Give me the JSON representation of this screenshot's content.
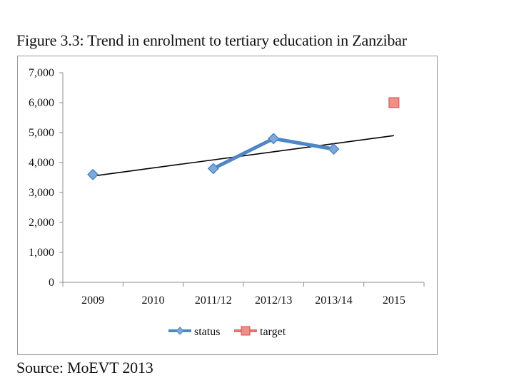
{
  "figure": {
    "title": "Figure 3.3: Trend in enrolment to tertiary education in Zanzibar",
    "source": "Source: MoEVT 2013"
  },
  "chart_data": {
    "type": "line",
    "title": "",
    "xlabel": "",
    "ylabel": "",
    "categories": [
      "2009",
      "2010",
      "2011/12",
      "2012/13",
      "2013/14",
      "2015"
    ],
    "ylim": [
      0,
      7000
    ],
    "yticks": [
      0,
      1000,
      2000,
      3000,
      4000,
      5000,
      6000,
      7000
    ],
    "ytick_labels": [
      "0",
      "1,000",
      "2,000",
      "3,000",
      "4,000",
      "5,000",
      "6,000",
      "7,000"
    ],
    "grid": false,
    "legend": "bottom",
    "series": [
      {
        "name": "status",
        "color": "#4f86c6",
        "marker": "diamond",
        "values": [
          3600,
          null,
          3800,
          4800,
          4450,
          null
        ]
      },
      {
        "name": "target",
        "color": "#e8736c",
        "marker": "square",
        "values": [
          null,
          null,
          null,
          null,
          null,
          6000
        ]
      }
    ],
    "trendline": {
      "color": "#000000",
      "start": 3550,
      "end": 4900
    }
  }
}
